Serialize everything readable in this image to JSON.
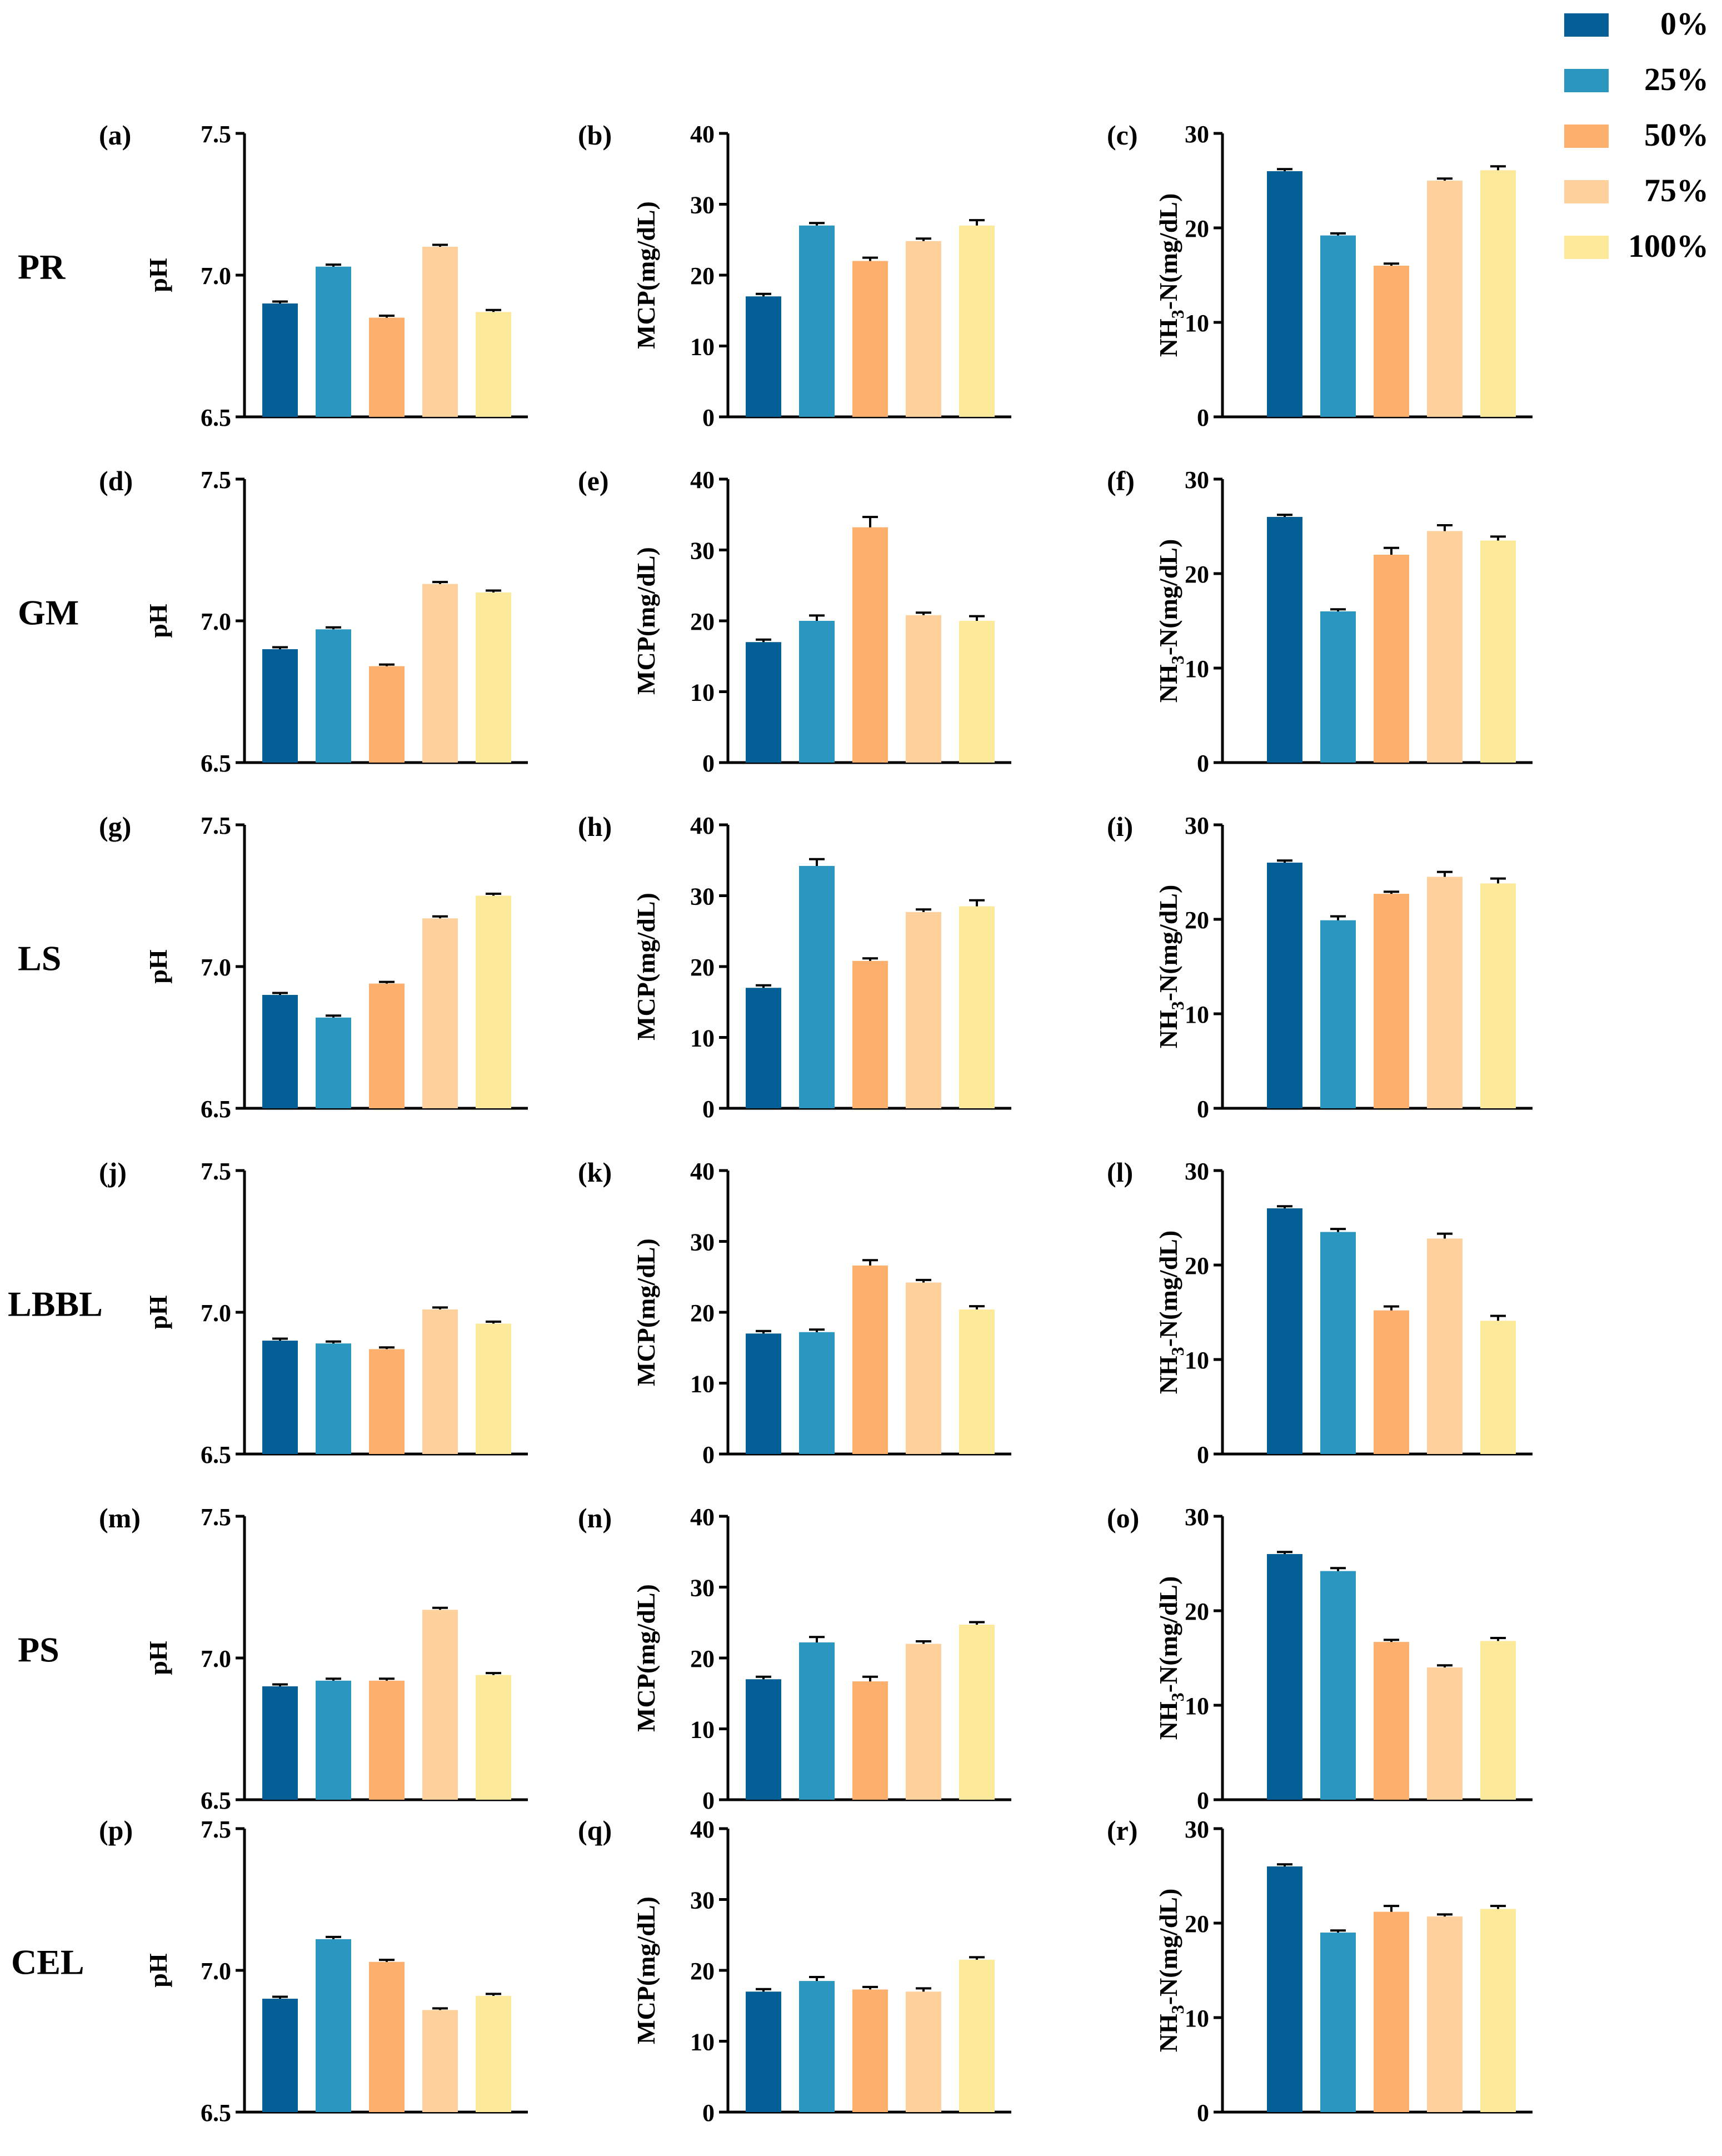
{
  "legend": {
    "items": [
      {
        "label": "0%",
        "color": "#035f96"
      },
      {
        "label": "25%",
        "color": "#2b96bf"
      },
      {
        "label": "50%",
        "color": "#fdb06d"
      },
      {
        "label": "75%",
        "color": "#fed09b"
      },
      {
        "label": "100%",
        "color": "#fde99a"
      }
    ]
  },
  "rows": [
    "PR",
    "GM",
    "LS",
    "LBBL",
    "PS",
    "CEL"
  ],
  "columns": [
    {
      "ylabel": "pH",
      "ylim": [
        6.5,
        7.5
      ],
      "ticks": [
        "6.5",
        "7.0",
        "7.5"
      ],
      "tick_values": [
        6.5,
        7.0,
        7.5
      ]
    },
    {
      "ylabel": "MCP(mg/dL)",
      "ylim": [
        0,
        40
      ],
      "ticks": [
        "0",
        "10",
        "20",
        "30",
        "40"
      ],
      "tick_values": [
        0,
        10,
        20,
        30,
        40
      ]
    },
    {
      "ylabel_main": "NH",
      "ylabel_sub": "3",
      "ylabel_tail": "-N(mg/dL)",
      "ylim": [
        0,
        30
      ],
      "ticks": [
        "0",
        "10",
        "20",
        "30"
      ],
      "tick_values": [
        0,
        10,
        20,
        30
      ]
    }
  ],
  "chart_data": [
    {
      "panel": "(a)",
      "type": "bar",
      "row": "PR",
      "ylabel": "pH",
      "ylim": [
        6.5,
        7.5
      ],
      "categories": [
        "0%",
        "25%",
        "50%",
        "75%",
        "100%"
      ],
      "values": [
        6.9,
        7.03,
        6.85,
        7.1,
        6.87
      ],
      "errors": [
        0.003,
        0.003,
        0.003,
        0.003,
        0.003
      ]
    },
    {
      "panel": "(b)",
      "type": "bar",
      "row": "PR",
      "ylabel": "MCP(mg/dL)",
      "ylim": [
        0,
        40
      ],
      "categories": [
        "0%",
        "25%",
        "50%",
        "75%",
        "100%"
      ],
      "values": [
        17.0,
        27.0,
        22.0,
        24.8,
        27.0
      ],
      "errors": [
        0.2,
        0.2,
        0.3,
        0.2,
        0.6
      ]
    },
    {
      "panel": "(c)",
      "type": "bar",
      "row": "PR",
      "ylabel": "NH3-N(mg/dL)",
      "ylim": [
        0,
        30
      ],
      "categories": [
        "0%",
        "25%",
        "50%",
        "75%",
        "100%"
      ],
      "values": [
        26.0,
        19.2,
        16.0,
        25.0,
        26.1
      ],
      "errors": [
        0.1,
        0.1,
        0.1,
        0.1,
        0.3
      ]
    },
    {
      "panel": "(d)",
      "type": "bar",
      "row": "GM",
      "ylabel": "pH",
      "ylim": [
        6.5,
        7.5
      ],
      "categories": [
        "0%",
        "25%",
        "50%",
        "75%",
        "100%"
      ],
      "values": [
        6.9,
        6.97,
        6.84,
        7.13,
        7.1
      ],
      "errors": [
        0.003,
        0.003,
        0.002,
        0.003,
        0.003
      ]
    },
    {
      "panel": "(e)",
      "type": "bar",
      "row": "GM",
      "ylabel": "MCP(mg/dL)",
      "ylim": [
        0,
        40
      ],
      "categories": [
        "0%",
        "25%",
        "50%",
        "75%",
        "100%"
      ],
      "values": [
        17.0,
        20.0,
        33.2,
        20.8,
        20.0
      ],
      "errors": [
        0.2,
        0.6,
        1.3,
        0.2,
        0.5
      ]
    },
    {
      "panel": "(f)",
      "type": "bar",
      "row": "GM",
      "ylabel": "NH3-N(mg/dL)",
      "ylim": [
        0,
        30
      ],
      "categories": [
        "0%",
        "25%",
        "50%",
        "75%",
        "100%"
      ],
      "values": [
        26.0,
        16.0,
        22.0,
        24.5,
        23.5
      ],
      "errors": [
        0.1,
        0.1,
        0.6,
        0.5,
        0.3
      ]
    },
    {
      "panel": "(g)",
      "type": "bar",
      "row": "LS",
      "ylabel": "pH",
      "ylim": [
        6.5,
        7.5
      ],
      "categories": [
        "0%",
        "25%",
        "50%",
        "75%",
        "100%"
      ],
      "values": [
        6.9,
        6.82,
        6.94,
        7.17,
        7.25
      ],
      "errors": [
        0.003,
        0.003,
        0.002,
        0.003,
        0.003
      ]
    },
    {
      "panel": "(h)",
      "type": "bar",
      "row": "LS",
      "ylabel": "MCP(mg/dL)",
      "ylim": [
        0,
        40
      ],
      "categories": [
        "0%",
        "25%",
        "50%",
        "75%",
        "100%"
      ],
      "values": [
        17.0,
        34.2,
        20.8,
        27.7,
        28.5
      ],
      "errors": [
        0.2,
        0.8,
        0.2,
        0.2,
        0.7
      ]
    },
    {
      "panel": "(i)",
      "type": "bar",
      "row": "LS",
      "ylabel": "NH3-N(mg/dL)",
      "ylim": [
        0,
        30
      ],
      "categories": [
        "0%",
        "25%",
        "50%",
        "75%",
        "100%"
      ],
      "values": [
        26.0,
        19.9,
        22.7,
        24.5,
        23.8
      ],
      "errors": [
        0.1,
        0.3,
        0.1,
        0.4,
        0.4
      ]
    },
    {
      "panel": "(j)",
      "type": "bar",
      "row": "LBBL",
      "ylabel": "pH",
      "ylim": [
        6.5,
        7.5
      ],
      "categories": [
        "0%",
        "25%",
        "50%",
        "75%",
        "100%"
      ],
      "values": [
        6.9,
        6.89,
        6.87,
        7.01,
        6.96
      ],
      "errors": [
        0.003,
        0.003,
        0.002,
        0.003,
        0.003
      ]
    },
    {
      "panel": "(k)",
      "type": "bar",
      "row": "LBBL",
      "ylabel": "MCP(mg/dL)",
      "ylim": [
        0,
        40
      ],
      "categories": [
        "0%",
        "25%",
        "50%",
        "75%",
        "100%"
      ],
      "values": [
        17.0,
        17.2,
        26.6,
        24.2,
        20.4
      ],
      "errors": [
        0.2,
        0.2,
        0.6,
        0.2,
        0.3
      ]
    },
    {
      "panel": "(l)",
      "type": "bar",
      "row": "LBBL",
      "ylabel": "NH3-N(mg/dL)",
      "ylim": [
        0,
        30
      ],
      "categories": [
        "0%",
        "25%",
        "50%",
        "75%",
        "100%"
      ],
      "values": [
        26.0,
        23.5,
        15.2,
        22.8,
        14.1
      ],
      "errors": [
        0.1,
        0.2,
        0.3,
        0.4,
        0.4
      ]
    },
    {
      "panel": "(m)",
      "type": "bar",
      "row": "PS",
      "ylabel": "pH",
      "ylim": [
        6.5,
        7.5
      ],
      "categories": [
        "0%",
        "25%",
        "50%",
        "75%",
        "100%"
      ],
      "values": [
        6.9,
        6.92,
        6.92,
        7.17,
        6.94
      ],
      "errors": [
        0.003,
        0.003,
        0.003,
        0.003,
        0.003
      ]
    },
    {
      "panel": "(n)",
      "type": "bar",
      "row": "PS",
      "ylabel": "MCP(mg/dL)",
      "ylim": [
        0,
        40
      ],
      "categories": [
        "0%",
        "25%",
        "50%",
        "75%",
        "100%"
      ],
      "values": [
        17.0,
        22.2,
        16.7,
        22.0,
        24.7
      ],
      "errors": [
        0.2,
        0.6,
        0.5,
        0.2,
        0.2
      ]
    },
    {
      "panel": "(o)",
      "type": "bar",
      "row": "PS",
      "ylabel": "NH3-N(mg/dL)",
      "ylim": [
        0,
        30
      ],
      "categories": [
        "0%",
        "25%",
        "50%",
        "75%",
        "100%"
      ],
      "values": [
        26.0,
        24.2,
        16.7,
        14.0,
        16.8
      ],
      "errors": [
        0.1,
        0.2,
        0.1,
        0.1,
        0.2
      ]
    },
    {
      "panel": "(p)",
      "type": "bar",
      "row": "CEL",
      "ylabel": "pH",
      "ylim": [
        6.5,
        7.5
      ],
      "categories": [
        "0%",
        "25%",
        "50%",
        "75%",
        "100%"
      ],
      "values": [
        6.9,
        7.11,
        7.03,
        6.86,
        6.91
      ],
      "errors": [
        0.003,
        0.004,
        0.003,
        0.002,
        0.003
      ]
    },
    {
      "panel": "(q)",
      "type": "bar",
      "row": "CEL",
      "ylabel": "MCP(mg/dL)",
      "ylim": [
        0,
        40
      ],
      "categories": [
        "0%",
        "25%",
        "50%",
        "75%",
        "100%"
      ],
      "values": [
        17.0,
        18.5,
        17.3,
        17.0,
        21.5
      ],
      "errors": [
        0.2,
        0.4,
        0.2,
        0.3,
        0.2
      ]
    },
    {
      "panel": "(r)",
      "type": "bar",
      "row": "CEL",
      "ylabel": "NH3-N(mg/dL)",
      "ylim": [
        0,
        30
      ],
      "categories": [
        "0%",
        "25%",
        "50%",
        "75%",
        "100%"
      ],
      "values": [
        26.0,
        19.0,
        21.2,
        20.7,
        21.5
      ],
      "errors": [
        0.1,
        0.1,
        0.5,
        0.1,
        0.2
      ]
    }
  ]
}
